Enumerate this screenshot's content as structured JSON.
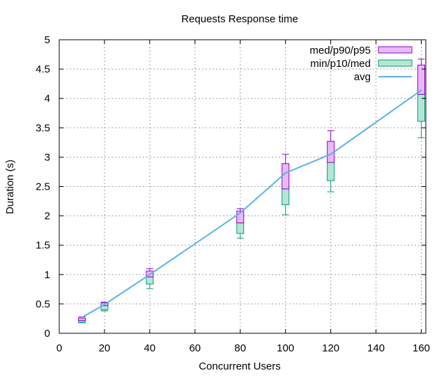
{
  "chart_data": {
    "type": "box-line",
    "title": "Requests Response time",
    "xlabel": "Concurrent Users",
    "ylabel": "Duration (s)",
    "xlim": [
      0,
      162
    ],
    "ylim": [
      0,
      5
    ],
    "x_ticks": [
      0,
      20,
      40,
      60,
      80,
      100,
      120,
      140,
      160
    ],
    "y_ticks": [
      0,
      0.5,
      1,
      1.5,
      2,
      2.5,
      3,
      3.5,
      4,
      4.5,
      5
    ],
    "y_tick_labels": [
      "0",
      "0.5",
      "1",
      "1.5",
      "2",
      "2.5",
      "3",
      "3.5",
      "4",
      "4.5",
      "5"
    ],
    "grid": true,
    "legend_position": "top-right",
    "colors": {
      "upper_fill": "#e8b9f4",
      "upper_stroke": "#9400d3",
      "lower_fill": "#b3e6d6",
      "lower_stroke": "#009e73",
      "avg_line": "#56b4e9",
      "grid": "#a0a0a0"
    },
    "series": [
      {
        "name": "med/p90/p95",
        "kind": "upper-box"
      },
      {
        "name": "min/p10/med",
        "kind": "lower-box"
      },
      {
        "name": "avg",
        "kind": "line"
      }
    ],
    "boxes": [
      {
        "x": 10,
        "min": 0.18,
        "p10": 0.19,
        "med": 0.22,
        "p90": 0.26,
        "p95": 0.28
      },
      {
        "x": 20,
        "min": 0.38,
        "p10": 0.4,
        "med": 0.47,
        "p90": 0.52,
        "p95": 0.53
      },
      {
        "x": 40,
        "min": 0.76,
        "p10": 0.84,
        "med": 0.96,
        "p90": 1.06,
        "p95": 1.1
      },
      {
        "x": 80,
        "min": 1.62,
        "p10": 1.7,
        "med": 1.88,
        "p90": 2.08,
        "p95": 2.12
      },
      {
        "x": 100,
        "min": 2.02,
        "p10": 2.19,
        "med": 2.46,
        "p90": 2.89,
        "p95": 3.05
      },
      {
        "x": 120,
        "min": 2.41,
        "p10": 2.6,
        "med": 2.91,
        "p90": 3.27,
        "p95": 3.45
      },
      {
        "x": 160,
        "min": 3.33,
        "p10": 3.61,
        "med": 4.07,
        "p90": 4.57,
        "p95": 4.67
      }
    ],
    "avg": {
      "x": [
        10,
        20,
        40,
        80,
        100,
        120,
        160
      ],
      "y": [
        0.27,
        0.49,
        1.0,
        2.05,
        2.73,
        3.05,
        4.14
      ]
    }
  }
}
